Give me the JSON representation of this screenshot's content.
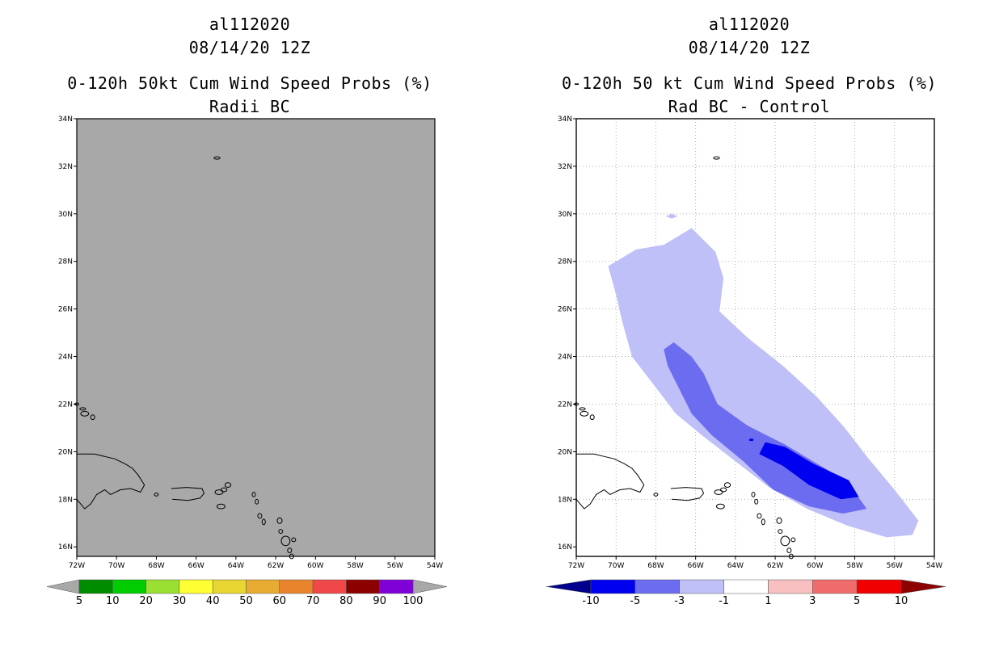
{
  "left_panel": {
    "storm_id": "al112020",
    "datetime": "08/14/20 12Z",
    "product": "0-120h 50kt Cum Wind Speed Probs (%)",
    "subtitle": "Radii BC",
    "field_color": "#a8a8a8",
    "colorbar": {
      "labels": [
        "5",
        "10",
        "20",
        "30",
        "40",
        "50",
        "60",
        "70",
        "80",
        "90",
        "100"
      ],
      "colors": [
        "#008c00",
        "#00cc00",
        "#99e033",
        "#ffff33",
        "#e8d632",
        "#e8ab32",
        "#e8852c",
        "#f04848",
        "#8c0000",
        "#8000d8"
      ],
      "end_color": "#a8a8a8"
    }
  },
  "right_panel": {
    "storm_id": "al112020",
    "datetime": "08/14/20 12Z",
    "product": "0-120h 50 kt Cum Wind Speed Probs (%)",
    "subtitle": "Rad BC - Control",
    "colorbar": {
      "labels": [
        "-10",
        "-5",
        "-3",
        "-1",
        "1",
        "3",
        "5",
        "10"
      ],
      "colors": [
        "#0000f0",
        "#6c6cf0",
        "#c0c0f8",
        "#ffffff",
        "#f8c0c0",
        "#f06c6c",
        "#f00000"
      ],
      "end_low": "#00008c",
      "end_high": "#8c0000"
    }
  },
  "map": {
    "lat_labels": [
      "16N",
      "18N",
      "20N",
      "22N",
      "24N",
      "26N",
      "28N",
      "30N",
      "32N",
      "34N"
    ],
    "lon_labels": [
      "72W",
      "70W",
      "68W",
      "66W",
      "64W",
      "62W",
      "60W",
      "58W",
      "56W",
      "54W"
    ]
  }
}
